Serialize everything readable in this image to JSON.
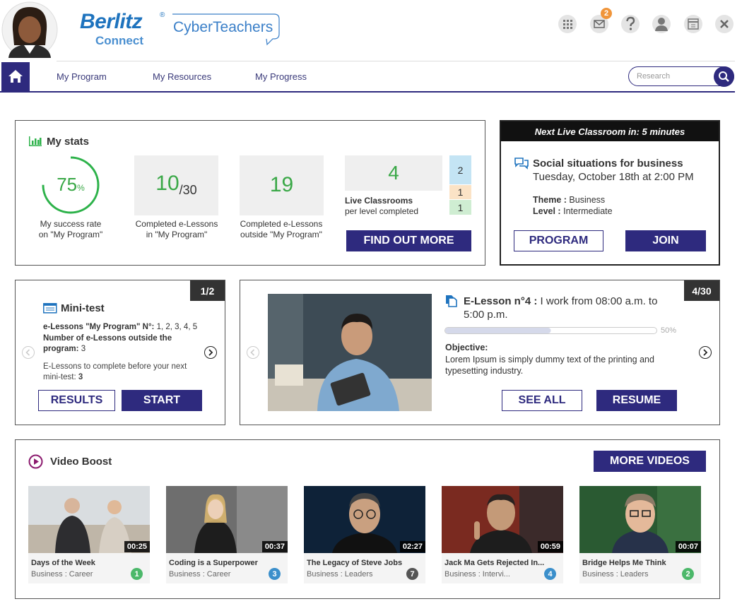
{
  "header": {
    "brand": "Berlitz",
    "registered": "®",
    "sub_brand": "Connect",
    "product": "CyberTeachers",
    "notification_count": "2"
  },
  "nav": {
    "items": [
      "My Program",
      "My Resources",
      "My Progress"
    ],
    "search_placeholder": "Research"
  },
  "stats": {
    "title": "My stats",
    "success_rate": 75,
    "success_unit": "%",
    "success_label": [
      "My success rate",
      "on \"My Program\""
    ],
    "completed": 10,
    "completed_total": "/30",
    "completed_label": [
      "Completed e-Lessons",
      "in \"My Program\""
    ],
    "outside": 19,
    "outside_label": [
      "Completed e-Lessons",
      "outside \"My Program\""
    ],
    "live_classrooms": 4,
    "live_label": "Live Classrooms",
    "live_sublabel": "per level completed",
    "levels": [
      {
        "value": 2,
        "color": "#c4e4f4"
      },
      {
        "value": 1,
        "color": "#fbe3c6"
      },
      {
        "value": 1,
        "color": "#cfedd2"
      }
    ],
    "button": "FIND OUT MORE"
  },
  "next_live": {
    "header": "Next Live Classroom in: 5 minutes",
    "title": "Social situations for business",
    "date": "Tuesday, October 18th at 2:00 PM",
    "theme_label": "Theme :",
    "theme": "Business",
    "level_label": "Level :",
    "level": "Intermediate",
    "buttons": [
      "PROGRAM",
      "JOIN"
    ]
  },
  "minitest": {
    "counter": "1/2",
    "title": "Mini-test",
    "lessons_label": "e-Lessons \"My Program\" N°:",
    "lessons": "1, 2, 3, 4, 5",
    "outside_label": "Number of e-Lessons outside the program:",
    "outside": "3",
    "remaining_label": "E-Lessons to complete before your next mini-test:",
    "remaining": "3",
    "buttons": [
      "RESULTS",
      "START"
    ]
  },
  "elesson": {
    "counter": "4/30",
    "title_label": "E-Lesson n°4 :",
    "title": "I work from 08:00 a.m. to 5:00 p.m.",
    "progress": 50,
    "progress_label": "50%",
    "objective_label": "Objective:",
    "objective": "Lorem Ipsum is simply dummy text of the printing and typesetting industry.",
    "buttons": [
      "SEE ALL",
      "RESUME"
    ]
  },
  "video_boost": {
    "title": "Video Boost",
    "button": "MORE VIDEOS",
    "videos": [
      {
        "title": "Days of the Week",
        "category": "Business : Career",
        "duration": "00:25",
        "badge": "1",
        "color": "#4cb86a"
      },
      {
        "title": "Coding is a Superpower",
        "category": "Business : Career",
        "duration": "00:37",
        "badge": "3",
        "color": "#3b8fcb"
      },
      {
        "title": "The Legacy of Steve Jobs",
        "category": "Business : Leaders",
        "duration": "02:27",
        "badge": "7",
        "color": "#555555"
      },
      {
        "title": "Jack Ma Gets Rejected In...",
        "category": "Business : Intervi...",
        "duration": "00:59",
        "badge": "4",
        "color": "#3b8fcb"
      },
      {
        "title": "Bridge Helps Me Think",
        "category": "Business : Leaders",
        "duration": "00:07",
        "badge": "2",
        "color": "#4cb86a"
      }
    ]
  }
}
